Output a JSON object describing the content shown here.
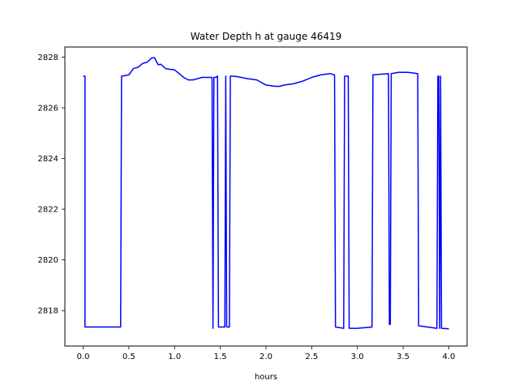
{
  "chart_data": {
    "type": "line",
    "title": "Water Depth h at gauge 46419",
    "xlabel": "hours",
    "ylabel": "",
    "xlim": [
      -0.2,
      4.2
    ],
    "ylim": [
      2816.6,
      2828.4
    ],
    "xticks": [
      0.0,
      0.5,
      1.0,
      1.5,
      2.0,
      2.5,
      3.0,
      3.5,
      4.0
    ],
    "xtick_labels": [
      "0.0",
      "0.5",
      "1.0",
      "1.5",
      "2.0",
      "2.5",
      "3.0",
      "3.5",
      "4.0"
    ],
    "yticks": [
      2818,
      2820,
      2822,
      2824,
      2826,
      2828
    ],
    "ytick_labels": [
      "2818",
      "2820",
      "2822",
      "2824",
      "2826",
      "2828"
    ],
    "grid": false,
    "line_color": "#0000ff",
    "series": [
      {
        "x": [
          0.0,
          0.02,
          0.02,
          0.41,
          0.42,
          0.5,
          0.55,
          0.6,
          0.65,
          0.7,
          0.75,
          0.78,
          0.82,
          0.85,
          0.9,
          0.95,
          1.0,
          1.05,
          1.1,
          1.15,
          1.2,
          1.25,
          1.3,
          1.41,
          1.42,
          1.43,
          1.45,
          1.47,
          1.48,
          1.55,
          1.56,
          1.57,
          1.6,
          1.61,
          1.65,
          1.7,
          1.8,
          1.9,
          2.0,
          2.1,
          2.15,
          2.2,
          2.3,
          2.4,
          2.5,
          2.6,
          2.7,
          2.75,
          2.76,
          2.85,
          2.86,
          2.9,
          2.91,
          3.0,
          3.16,
          3.17,
          3.34,
          3.35,
          3.36,
          3.37,
          3.45,
          3.5,
          3.55,
          3.6,
          3.66,
          3.67,
          3.87,
          3.88,
          3.89,
          3.9,
          3.91,
          3.92,
          4.0
        ],
        "y": [
          2827.25,
          2827.25,
          2817.35,
          2817.35,
          2827.25,
          2827.3,
          2827.55,
          2827.6,
          2827.75,
          2827.8,
          2827.97,
          2827.98,
          2827.7,
          2827.72,
          2827.55,
          2827.52,
          2827.5,
          2827.35,
          2827.2,
          2827.1,
          2827.1,
          2827.15,
          2827.2,
          2827.2,
          2817.3,
          2827.2,
          2827.2,
          2827.25,
          2817.35,
          2817.35,
          2827.25,
          2817.35,
          2817.35,
          2827.25,
          2827.25,
          2827.22,
          2827.15,
          2827.1,
          2826.9,
          2826.85,
          2826.85,
          2826.9,
          2826.95,
          2827.05,
          2827.2,
          2827.3,
          2827.35,
          2827.3,
          2817.35,
          2817.3,
          2827.25,
          2827.25,
          2817.3,
          2817.3,
          2817.35,
          2827.3,
          2827.35,
          2817.45,
          2817.45,
          2827.35,
          2827.4,
          2827.4,
          2827.4,
          2827.38,
          2827.35,
          2817.4,
          2817.3,
          2827.25,
          2827.25,
          2817.3,
          2827.25,
          2817.3,
          2817.28
        ]
      }
    ]
  }
}
